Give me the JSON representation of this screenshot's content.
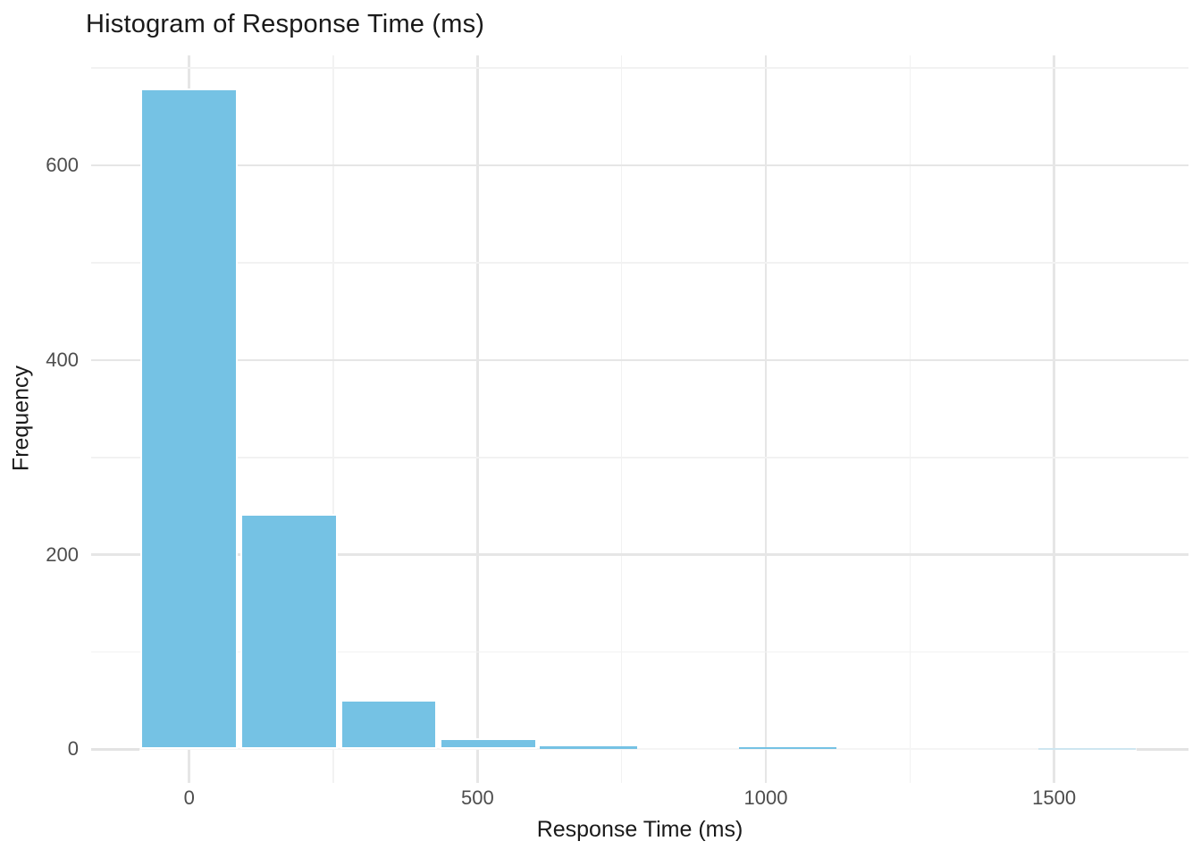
{
  "chart_data": {
    "type": "histogram",
    "title": "Histogram of Response Time (ms)",
    "xlabel": "Response Time (ms)",
    "ylabel": "Frequency",
    "x_tick_values": [
      0,
      500,
      1000,
      1500
    ],
    "x_tick_labels": [
      "0",
      "500",
      "1000",
      "1500"
    ],
    "x_minor_values": [
      250,
      750,
      1250
    ],
    "y_tick_values": [
      0,
      200,
      400,
      600
    ],
    "y_tick_labels": [
      "0",
      "200",
      "400",
      "600"
    ],
    "y_minor_values": [
      100,
      300,
      500,
      700
    ],
    "x_range": [
      -170,
      1733
    ],
    "y_range": [
      -34,
      713
    ],
    "bin_start": -86.5,
    "bin_width": 173,
    "bin_centers": [
      0,
      173,
      346,
      519,
      692,
      865,
      1038,
      1211,
      1384,
      1557
    ],
    "counts": [
      679,
      242,
      51,
      11,
      3,
      0,
      2,
      0,
      0,
      1
    ],
    "grid": "major-and-minor",
    "legend_position": "none",
    "colors": {
      "background": "#FFFFFF",
      "bar_fill": "#75C2E4",
      "bar_border": "#FFFFFF",
      "grid_major": "#E6E6E6",
      "grid_minor": "#F2F2F2",
      "grid_baseline_exposed": "#E3E3E3",
      "grid_baseline_covered": "#F5F5F5",
      "tick_text": "#4D4D4D",
      "title_text": "#1A1A1A"
    }
  }
}
